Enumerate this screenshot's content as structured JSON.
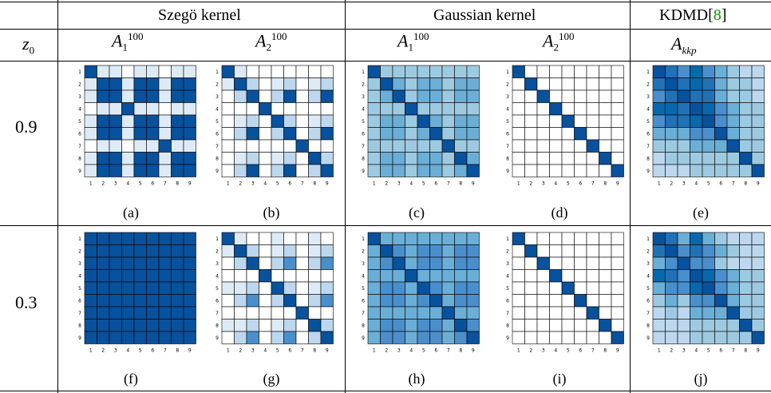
{
  "header": {
    "group1": "Szegö kernel",
    "group2": "Gaussian kernel",
    "group3_text": "KDMD[",
    "group3_cite": "8",
    "group3_close": "]"
  },
  "columns": [
    {
      "base": "A",
      "sub": "1",
      "sup": "100"
    },
    {
      "base": "A",
      "sub": "2",
      "sup": "100"
    },
    {
      "base": "A",
      "sub": "1",
      "sup": "100"
    },
    {
      "base": "A",
      "sub": "2",
      "sup": "100"
    },
    {
      "base": "A",
      "sub": "kkp",
      "sup": ""
    }
  ],
  "row_header": {
    "base": "z",
    "sub": "0"
  },
  "rows": [
    {
      "z0": "0.9",
      "captions": [
        "(a)",
        "(b)",
        "(c)",
        "(d)",
        "(e)"
      ]
    },
    {
      "z0": "0.3",
      "captions": [
        "(f)",
        "(g)",
        "(h)",
        "(i)",
        "(j)"
      ]
    }
  ],
  "colors": {
    "scale": [
      "#ffffff",
      "#deebf7",
      "#bdd7ee",
      "#9ecae1",
      "#6baed6",
      "#4a8fcc",
      "#2171b5",
      "#0868ac",
      "#08519c"
    ],
    "diag": "#0868ac",
    "grid": "#000000"
  },
  "axis_ticks": [
    "1",
    "2",
    "3",
    "4",
    "5",
    "6",
    "7",
    "8",
    "9"
  ],
  "chart_data": [
    {
      "type": "heatmap",
      "label": "(a)",
      "size": 9,
      "rows": [
        [
          9,
          2,
          2,
          1,
          2,
          2,
          1,
          2,
          2
        ],
        [
          2,
          9,
          9,
          2,
          9,
          9,
          2,
          9,
          9
        ],
        [
          2,
          9,
          9,
          2,
          9,
          9,
          2,
          9,
          9
        ],
        [
          1,
          2,
          2,
          9,
          2,
          2,
          1,
          2,
          2
        ],
        [
          2,
          9,
          9,
          2,
          9,
          9,
          2,
          9,
          9
        ],
        [
          2,
          9,
          9,
          2,
          9,
          9,
          2,
          9,
          9
        ],
        [
          1,
          2,
          2,
          1,
          2,
          2,
          9,
          2,
          2
        ],
        [
          2,
          9,
          9,
          2,
          9,
          9,
          2,
          9,
          9
        ],
        [
          2,
          9,
          9,
          2,
          9,
          9,
          2,
          9,
          9
        ]
      ]
    },
    {
      "type": "heatmap",
      "label": "(b)",
      "size": 9,
      "rows": [
        [
          9,
          2,
          1,
          1,
          1,
          1,
          1,
          1,
          1
        ],
        [
          2,
          9,
          3,
          1,
          2,
          3,
          1,
          2,
          3
        ],
        [
          1,
          3,
          9,
          1,
          3,
          9,
          1,
          3,
          9
        ],
        [
          1,
          1,
          1,
          9,
          1,
          1,
          1,
          1,
          1
        ],
        [
          1,
          2,
          3,
          1,
          9,
          3,
          1,
          2,
          3
        ],
        [
          1,
          3,
          9,
          1,
          3,
          9,
          1,
          3,
          9
        ],
        [
          1,
          1,
          1,
          1,
          1,
          1,
          9,
          1,
          1
        ],
        [
          1,
          2,
          3,
          1,
          2,
          3,
          1,
          9,
          3
        ],
        [
          1,
          3,
          9,
          1,
          3,
          9,
          1,
          3,
          9
        ]
      ]
    },
    {
      "type": "heatmap",
      "label": "(c)",
      "size": 9,
      "rows": [
        [
          9,
          4,
          4,
          4,
          4,
          4,
          4,
          4,
          4
        ],
        [
          4,
          9,
          5,
          4,
          5,
          5,
          4,
          5,
          5
        ],
        [
          4,
          5,
          9,
          4,
          5,
          5,
          4,
          5,
          5
        ],
        [
          4,
          4,
          4,
          9,
          4,
          4,
          4,
          4,
          4
        ],
        [
          4,
          5,
          5,
          4,
          9,
          5,
          4,
          5,
          5
        ],
        [
          4,
          5,
          5,
          4,
          5,
          9,
          4,
          5,
          5
        ],
        [
          4,
          4,
          4,
          4,
          4,
          4,
          9,
          4,
          4
        ],
        [
          4,
          5,
          5,
          4,
          5,
          5,
          4,
          9,
          5
        ],
        [
          4,
          5,
          5,
          4,
          5,
          5,
          4,
          5,
          9
        ]
      ]
    },
    {
      "type": "heatmap",
      "label": "(d)",
      "size": 9,
      "rows": [
        [
          9,
          1,
          1,
          1,
          1,
          1,
          1,
          1,
          1
        ],
        [
          1,
          9,
          1,
          1,
          1,
          1,
          1,
          1,
          1
        ],
        [
          1,
          1,
          9,
          1,
          1,
          1,
          1,
          1,
          1
        ],
        [
          1,
          1,
          1,
          9,
          1,
          1,
          1,
          1,
          1
        ],
        [
          1,
          1,
          1,
          1,
          9,
          1,
          1,
          1,
          1
        ],
        [
          1,
          1,
          1,
          1,
          1,
          9,
          1,
          1,
          1
        ],
        [
          1,
          1,
          1,
          1,
          1,
          1,
          9,
          1,
          1
        ],
        [
          1,
          1,
          1,
          1,
          1,
          1,
          1,
          9,
          1
        ],
        [
          1,
          1,
          1,
          1,
          1,
          1,
          1,
          1,
          9
        ]
      ]
    },
    {
      "type": "heatmap",
      "label": "(e)",
      "size": 9,
      "rows": [
        [
          9,
          7,
          6,
          8,
          6,
          5,
          4,
          3,
          3
        ],
        [
          7,
          9,
          7,
          8,
          7,
          5,
          4,
          4,
          3
        ],
        [
          6,
          7,
          9,
          7,
          7,
          5,
          4,
          4,
          3
        ],
        [
          8,
          8,
          7,
          9,
          8,
          6,
          5,
          4,
          4
        ],
        [
          6,
          7,
          7,
          8,
          9,
          6,
          5,
          4,
          4
        ],
        [
          5,
          5,
          5,
          6,
          6,
          9,
          5,
          4,
          4
        ],
        [
          4,
          4,
          4,
          5,
          5,
          5,
          9,
          4,
          4
        ],
        [
          3,
          4,
          4,
          4,
          4,
          4,
          4,
          9,
          4
        ],
        [
          3,
          3,
          3,
          4,
          4,
          4,
          4,
          4,
          9
        ]
      ]
    },
    {
      "type": "heatmap",
      "label": "(f)",
      "size": 9,
      "rows": [
        [
          9,
          9,
          9,
          9,
          9,
          9,
          9,
          9,
          9
        ],
        [
          9,
          9,
          9,
          9,
          9,
          9,
          9,
          9,
          9
        ],
        [
          9,
          9,
          9,
          9,
          9,
          9,
          9,
          9,
          9
        ],
        [
          9,
          9,
          9,
          9,
          9,
          9,
          9,
          9,
          9
        ],
        [
          9,
          9,
          9,
          9,
          9,
          9,
          9,
          9,
          9
        ],
        [
          9,
          9,
          9,
          9,
          9,
          9,
          9,
          9,
          9
        ],
        [
          9,
          9,
          9,
          9,
          9,
          9,
          9,
          9,
          9
        ],
        [
          9,
          9,
          9,
          9,
          9,
          9,
          9,
          9,
          9
        ],
        [
          9,
          9,
          9,
          9,
          9,
          9,
          9,
          9,
          9
        ]
      ]
    },
    {
      "type": "heatmap",
      "label": "(g)",
      "size": 9,
      "rows": [
        [
          9,
          2,
          1,
          1,
          2,
          1,
          1,
          2,
          1
        ],
        [
          2,
          9,
          3,
          1,
          2,
          3,
          1,
          2,
          3
        ],
        [
          1,
          3,
          9,
          1,
          3,
          6,
          1,
          3,
          6
        ],
        [
          1,
          1,
          1,
          9,
          1,
          1,
          1,
          1,
          1
        ],
        [
          2,
          2,
          3,
          1,
          9,
          3,
          1,
          2,
          3
        ],
        [
          1,
          3,
          6,
          1,
          3,
          9,
          1,
          3,
          6
        ],
        [
          1,
          1,
          1,
          1,
          1,
          1,
          9,
          1,
          1
        ],
        [
          2,
          2,
          3,
          1,
          2,
          3,
          1,
          9,
          3
        ],
        [
          1,
          3,
          6,
          1,
          3,
          6,
          1,
          3,
          9
        ]
      ]
    },
    {
      "type": "heatmap",
      "label": "(h)",
      "size": 9,
      "rows": [
        [
          9,
          5,
          5,
          5,
          5,
          5,
          5,
          5,
          5
        ],
        [
          5,
          9,
          6,
          5,
          6,
          6,
          5,
          6,
          6
        ],
        [
          5,
          6,
          9,
          5,
          6,
          6,
          5,
          6,
          6
        ],
        [
          5,
          5,
          5,
          9,
          5,
          5,
          5,
          5,
          5
        ],
        [
          5,
          6,
          6,
          5,
          9,
          6,
          5,
          6,
          6
        ],
        [
          5,
          6,
          6,
          5,
          6,
          9,
          5,
          6,
          6
        ],
        [
          5,
          5,
          5,
          5,
          5,
          5,
          9,
          5,
          5
        ],
        [
          5,
          6,
          6,
          5,
          6,
          6,
          5,
          9,
          6
        ],
        [
          5,
          6,
          6,
          5,
          6,
          6,
          5,
          6,
          9
        ]
      ]
    },
    {
      "type": "heatmap",
      "label": "(i)",
      "size": 9,
      "rows": [
        [
          9,
          1,
          1,
          1,
          1,
          1,
          1,
          1,
          1
        ],
        [
          1,
          9,
          1,
          1,
          1,
          1,
          1,
          1,
          1
        ],
        [
          1,
          1,
          9,
          1,
          1,
          1,
          1,
          1,
          1
        ],
        [
          1,
          1,
          1,
          9,
          1,
          1,
          1,
          1,
          1
        ],
        [
          1,
          1,
          1,
          1,
          9,
          1,
          1,
          1,
          1
        ],
        [
          1,
          1,
          1,
          1,
          1,
          9,
          1,
          1,
          1
        ],
        [
          1,
          1,
          1,
          1,
          1,
          1,
          9,
          1,
          1
        ],
        [
          1,
          1,
          1,
          1,
          1,
          1,
          1,
          9,
          1
        ],
        [
          1,
          1,
          1,
          1,
          1,
          1,
          1,
          1,
          9
        ]
      ]
    },
    {
      "type": "heatmap",
      "label": "(j)",
      "size": 9,
      "rows": [
        [
          9,
          7,
          5,
          8,
          5,
          4,
          3,
          3,
          3
        ],
        [
          7,
          9,
          6,
          7,
          6,
          5,
          4,
          3,
          3
        ],
        [
          5,
          6,
          9,
          6,
          6,
          4,
          3,
          3,
          3
        ],
        [
          8,
          7,
          6,
          9,
          8,
          6,
          5,
          4,
          4
        ],
        [
          5,
          6,
          6,
          8,
          9,
          6,
          5,
          4,
          4
        ],
        [
          4,
          5,
          4,
          6,
          6,
          9,
          5,
          4,
          4
        ],
        [
          3,
          4,
          3,
          5,
          5,
          5,
          9,
          4,
          4
        ],
        [
          3,
          3,
          3,
          4,
          4,
          4,
          4,
          9,
          4
        ],
        [
          3,
          3,
          3,
          4,
          4,
          4,
          4,
          4,
          9
        ]
      ]
    }
  ]
}
